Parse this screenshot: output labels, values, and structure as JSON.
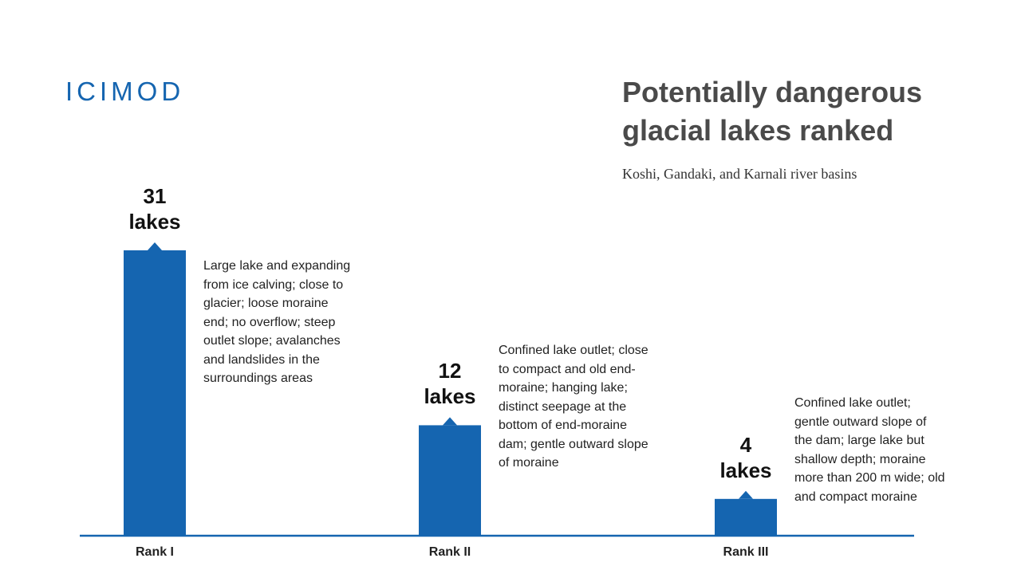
{
  "logo": "ICIMOD",
  "chart_data": {
    "type": "bar",
    "title": "Potentially dangerous glacial lakes ranked",
    "subtitle": "Koshi, Gandaki, and Karnali river basins",
    "categories": [
      "Rank I",
      "Rank II",
      "Rank III"
    ],
    "values": [
      31,
      12,
      4
    ],
    "value_labels": [
      "31 lakes",
      "12 lakes",
      "4 lakes"
    ],
    "color": "#1565b0",
    "annotations": [
      "Large lake and expanding from ice calving; close to glacier; loose moraine end; no overflow; steep outlet slope; avalanches and landslides in the surroundings areas",
      "Confined lake outlet; close to compact and old end-moraine; hanging lake; distinct seepage at the bottom of end-moraine dam; gentle outward slope of moraine",
      "Confined lake outlet; gentle outward slope of the dam; large lake but shallow depth; moraine more than 200 m wide; old and compact moraine"
    ]
  }
}
